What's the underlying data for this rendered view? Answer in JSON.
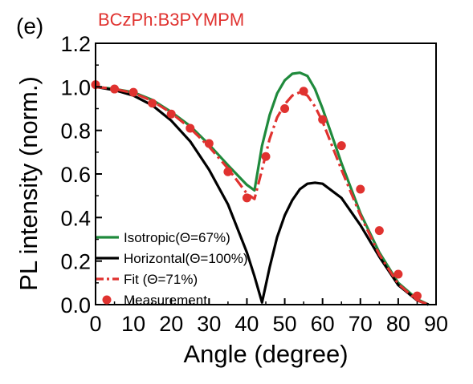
{
  "panel_label": "(e)",
  "chart_data": {
    "type": "line",
    "title": "BCzPh:B3PYMPM",
    "xlabel": "Angle (degree)",
    "ylabel": "PL intensity (norm.)",
    "xlim": [
      0,
      90
    ],
    "ylim": [
      0,
      1.2
    ],
    "x_ticks": [
      "0",
      "10",
      "20",
      "30",
      "40",
      "50",
      "60",
      "70",
      "80",
      "90"
    ],
    "y_ticks": [
      "0.0",
      "0.2",
      "0.4",
      "0.6",
      "0.8",
      "1.0",
      "1.2"
    ],
    "grid": false,
    "legend_position": "bottom-left",
    "colors": {
      "isotropic": "#1f8a3c",
      "horizontal": "#000000",
      "fit": "#e0322f",
      "title": "#e0322f"
    },
    "series": [
      {
        "name": "Isotropic(Θ=67%)",
        "style": "solid",
        "x": [
          0,
          5,
          10,
          15,
          20,
          25,
          30,
          35,
          40,
          42,
          44,
          46,
          48,
          50,
          52,
          54,
          56,
          58,
          60,
          65,
          70,
          75,
          80,
          85,
          88
        ],
        "y": [
          1.0,
          0.99,
          0.975,
          0.94,
          0.885,
          0.82,
          0.735,
          0.64,
          0.55,
          0.525,
          0.73,
          0.87,
          0.97,
          1.03,
          1.06,
          1.065,
          1.05,
          0.99,
          0.9,
          0.65,
          0.42,
          0.24,
          0.1,
          0.025,
          0.0
        ]
      },
      {
        "name": "Horizontal(Θ=100%)",
        "style": "solid",
        "x": [
          0,
          5,
          10,
          15,
          20,
          25,
          30,
          35,
          40,
          42,
          44,
          46,
          48,
          50,
          52,
          54,
          56,
          58,
          60,
          65,
          70,
          75,
          80,
          85,
          88
        ],
        "y": [
          1.0,
          0.985,
          0.96,
          0.915,
          0.845,
          0.75,
          0.62,
          0.46,
          0.24,
          0.13,
          0.01,
          0.17,
          0.31,
          0.41,
          0.48,
          0.53,
          0.555,
          0.56,
          0.555,
          0.49,
          0.365,
          0.22,
          0.09,
          0.02,
          0.0
        ]
      },
      {
        "name": "Fit (Θ=71%)",
        "style": "dash-dot",
        "x": [
          0,
          5,
          10,
          15,
          20,
          25,
          30,
          35,
          40,
          42,
          44,
          46,
          48,
          50,
          52,
          54,
          56,
          58,
          60,
          65,
          70,
          75,
          80,
          85,
          88
        ],
        "y": [
          1.0,
          0.99,
          0.972,
          0.935,
          0.88,
          0.81,
          0.725,
          0.625,
          0.51,
          0.485,
          0.62,
          0.76,
          0.86,
          0.92,
          0.96,
          0.975,
          0.96,
          0.91,
          0.84,
          0.62,
          0.41,
          0.23,
          0.095,
          0.02,
          0.0
        ]
      },
      {
        "name": "Measurement",
        "style": "markers",
        "x": [
          0,
          5,
          10,
          15,
          20,
          25,
          30,
          35,
          40,
          45,
          50,
          55,
          60,
          65,
          70,
          75,
          80,
          85
        ],
        "y": [
          1.01,
          0.99,
          0.975,
          0.925,
          0.875,
          0.81,
          0.74,
          0.61,
          0.49,
          0.68,
          0.9,
          0.98,
          0.85,
          0.73,
          0.53,
          0.34,
          0.14,
          0.04
        ]
      }
    ]
  }
}
